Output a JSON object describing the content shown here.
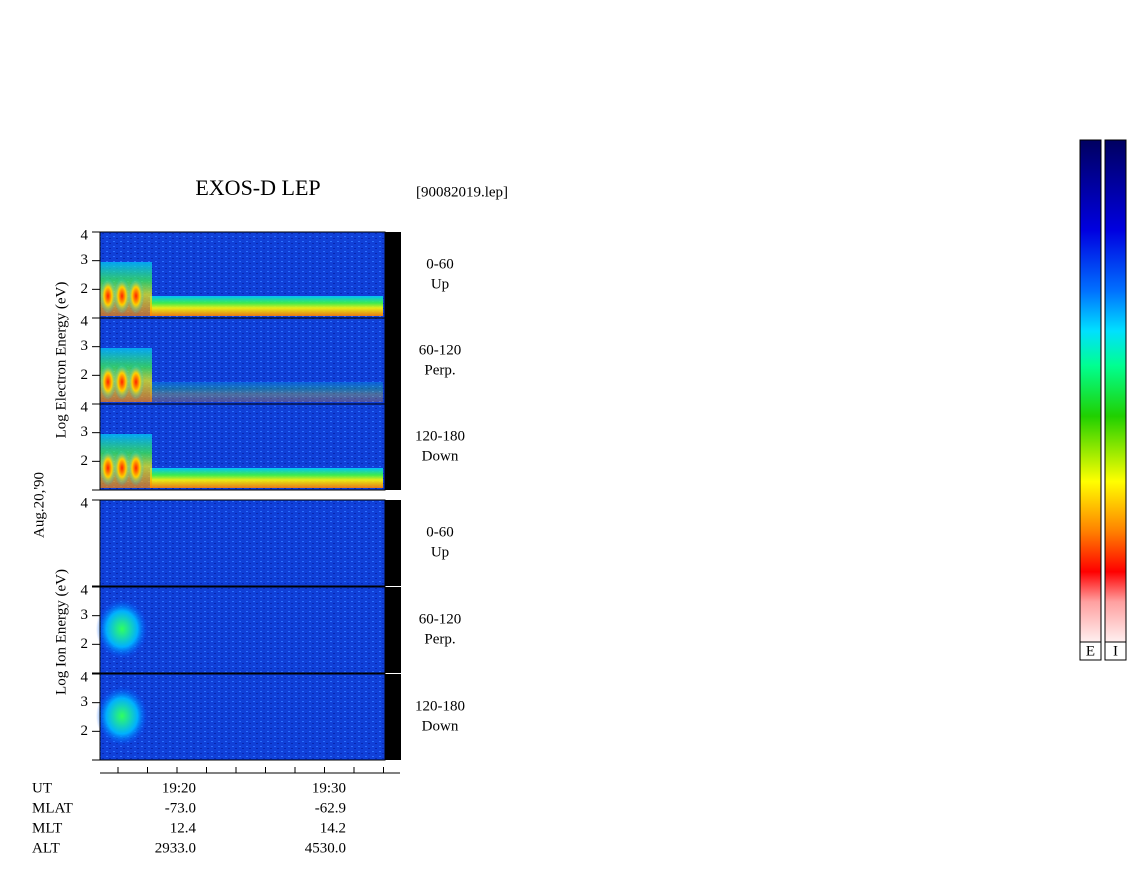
{
  "title": "EXOS-D LEP",
  "file": "[90082019.lep]",
  "date": "Aug.20,'90",
  "electron_axis": "Log  Electron  Energy (eV)",
  "ion_axis": "Log  Ion  Energy (eV)",
  "panels": [
    {
      "ticks": [
        2,
        3,
        4
      ],
      "angle": "0-60",
      "direction": "Up"
    },
    {
      "ticks": [
        2,
        3,
        4
      ],
      "angle": "60-120",
      "direction": "Perp."
    },
    {
      "ticks": [
        2,
        3,
        4
      ],
      "angle": "120-180",
      "direction": "Down"
    },
    {
      "ticks": [
        4
      ],
      "angle": "0-60",
      "direction": "Up"
    },
    {
      "ticks": [
        2,
        3,
        4
      ],
      "angle": "60-120",
      "direction": "Perp."
    },
    {
      "ticks": [
        2,
        3,
        4
      ],
      "angle": "120-180",
      "direction": "Down"
    }
  ],
  "footer": [
    {
      "label": "UT",
      "values": [
        "19:20",
        "19:30"
      ]
    },
    {
      "label": "MLAT",
      "values": [
        "-73.0",
        "-62.9"
      ]
    },
    {
      "label": "MLT",
      "values": [
        "12.4",
        "14.2"
      ]
    },
    {
      "label": "ALT",
      "values": [
        "2933.0",
        "4530.0"
      ]
    }
  ],
  "colorbars": [
    "E",
    "I"
  ]
}
